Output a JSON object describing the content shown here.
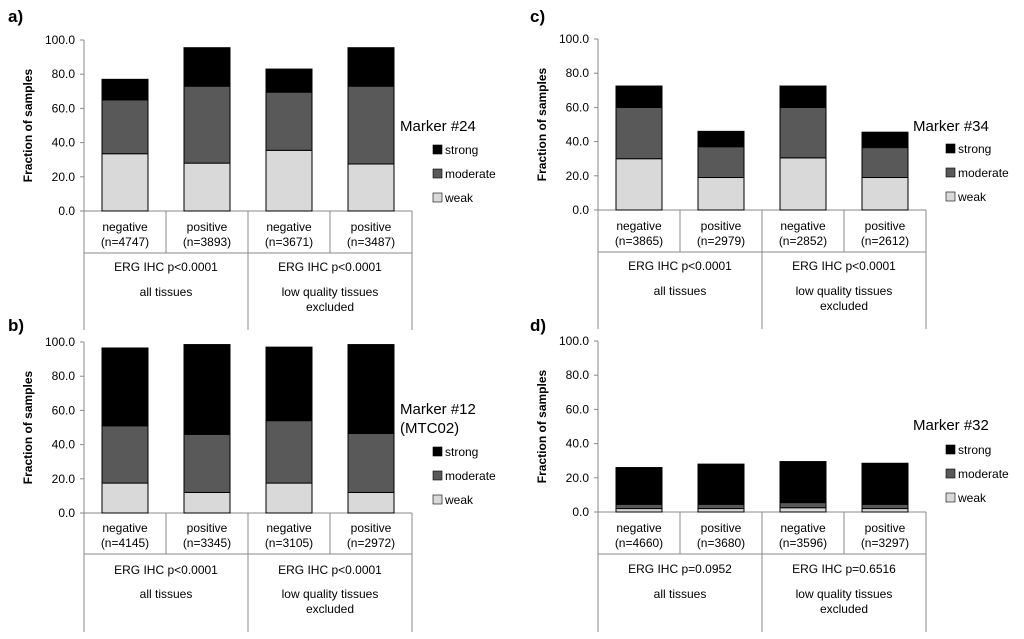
{
  "colors": {
    "strong": "#000000",
    "moderate": "#595959",
    "weak": "#d9d9d9"
  },
  "chart_data": [
    {
      "panel": "a)",
      "type": "bar",
      "stacked": true,
      "ylabel": "Fraction of samples",
      "ylim": [
        0,
        100
      ],
      "yticks": [
        "0.0",
        "20.0",
        "40.0",
        "60.0",
        "80.0",
        "100.0"
      ],
      "marker_title": [
        "Marker #24"
      ],
      "legend": [
        "strong",
        "moderate",
        "weak"
      ],
      "categories": [
        {
          "label": "negative",
          "n": "(n=4747)"
        },
        {
          "label": "positive",
          "n": "(n=3893)"
        },
        {
          "label": "negative",
          "n": "(n=3671)"
        },
        {
          "label": "positive",
          "n": "(n=3487)"
        }
      ],
      "series": [
        {
          "name": "weak",
          "values": [
            33.5,
            28,
            35.5,
            27.5
          ]
        },
        {
          "name": "moderate",
          "values": [
            31.5,
            45,
            34,
            45.5
          ]
        },
        {
          "name": "strong",
          "values": [
            12,
            22.5,
            13.5,
            22.5
          ]
        }
      ],
      "groups": [
        {
          "stat": "ERG IHC p<0.0001",
          "label": [
            "all tissues"
          ]
        },
        {
          "stat": "ERG IHC p<0.0001",
          "label": [
            "low quality tissues",
            "excluded"
          ]
        }
      ]
    },
    {
      "panel": "b)",
      "type": "bar",
      "stacked": true,
      "ylabel": "Fraction of samples",
      "ylim": [
        0,
        100
      ],
      "yticks": [
        "0.0",
        "20.0",
        "40.0",
        "60.0",
        "80.0",
        "100.0"
      ],
      "marker_title": [
        "Marker #12",
        "(MTC02)"
      ],
      "legend": [
        "strong",
        "moderate",
        "weak"
      ],
      "categories": [
        {
          "label": "negative",
          "n": "(n=4145)"
        },
        {
          "label": "positive",
          "n": "(n=3345)"
        },
        {
          "label": "negative",
          "n": "(n=3105)"
        },
        {
          "label": "positive",
          "n": "(n=2972)"
        }
      ],
      "series": [
        {
          "name": "weak",
          "values": [
            17.5,
            12,
            17.5,
            12
          ]
        },
        {
          "name": "moderate",
          "values": [
            33.5,
            34,
            36.5,
            34.5
          ]
        },
        {
          "name": "strong",
          "values": [
            45.5,
            52.5,
            43,
            52
          ]
        }
      ],
      "groups": [
        {
          "stat": "ERG IHC p<0.0001",
          "label": [
            "all tissues"
          ]
        },
        {
          "stat": "ERG IHC p<0.0001",
          "label": [
            "low quality tissues",
            "excluded"
          ]
        }
      ]
    },
    {
      "panel": "c)",
      "type": "bar",
      "stacked": true,
      "ylabel": "Fraction of samples",
      "ylim": [
        0,
        100
      ],
      "yticks": [
        "0.0",
        "20.0",
        "40.0",
        "60.0",
        "80.0",
        "100.0"
      ],
      "marker_title": [
        "Marker #34"
      ],
      "legend": [
        "strong",
        "moderate",
        "weak"
      ],
      "categories": [
        {
          "label": "negative",
          "n": "(n=3865)"
        },
        {
          "label": "positive",
          "n": "(n=2979)"
        },
        {
          "label": "negative",
          "n": "(n=2852)"
        },
        {
          "label": "positive",
          "n": "(n=2612)"
        }
      ],
      "series": [
        {
          "name": "weak",
          "values": [
            30,
            19,
            30.5,
            19
          ]
        },
        {
          "name": "moderate",
          "values": [
            30,
            18,
            29.5,
            17.5
          ]
        },
        {
          "name": "strong",
          "values": [
            12.5,
            9,
            12.5,
            9
          ]
        }
      ],
      "groups": [
        {
          "stat": "ERG IHC p<0.0001",
          "label": [
            "all tissues"
          ]
        },
        {
          "stat": "ERG IHC p<0.0001",
          "label": [
            "low quality tissues",
            "excluded"
          ]
        }
      ]
    },
    {
      "panel": "d)",
      "type": "bar",
      "stacked": true,
      "ylabel": "Fraction of samples",
      "ylim": [
        0,
        100
      ],
      "yticks": [
        "0.0",
        "20.0",
        "40.0",
        "60.0",
        "80.0",
        "100.0"
      ],
      "marker_title": [
        "Marker #32"
      ],
      "legend": [
        "strong",
        "moderate",
        "weak"
      ],
      "categories": [
        {
          "label": "negative",
          "n": "(n=4660)"
        },
        {
          "label": "positive",
          "n": "(n=3680)"
        },
        {
          "label": "negative",
          "n": "(n=3596)"
        },
        {
          "label": "positive",
          "n": "(n=3297)"
        }
      ],
      "series": [
        {
          "name": "weak",
          "values": [
            2,
            2,
            2.5,
            2
          ]
        },
        {
          "name": "moderate",
          "values": [
            2.5,
            2.5,
            3,
            2.5
          ]
        },
        {
          "name": "strong",
          "values": [
            21.5,
            23.5,
            24,
            24
          ]
        }
      ],
      "groups": [
        {
          "stat": "ERG IHC p=0.0952",
          "label": [
            "all tissues"
          ]
        },
        {
          "stat": "ERG IHC p=0.6516",
          "label": [
            "low quality tissues",
            "excluded"
          ]
        }
      ]
    }
  ]
}
